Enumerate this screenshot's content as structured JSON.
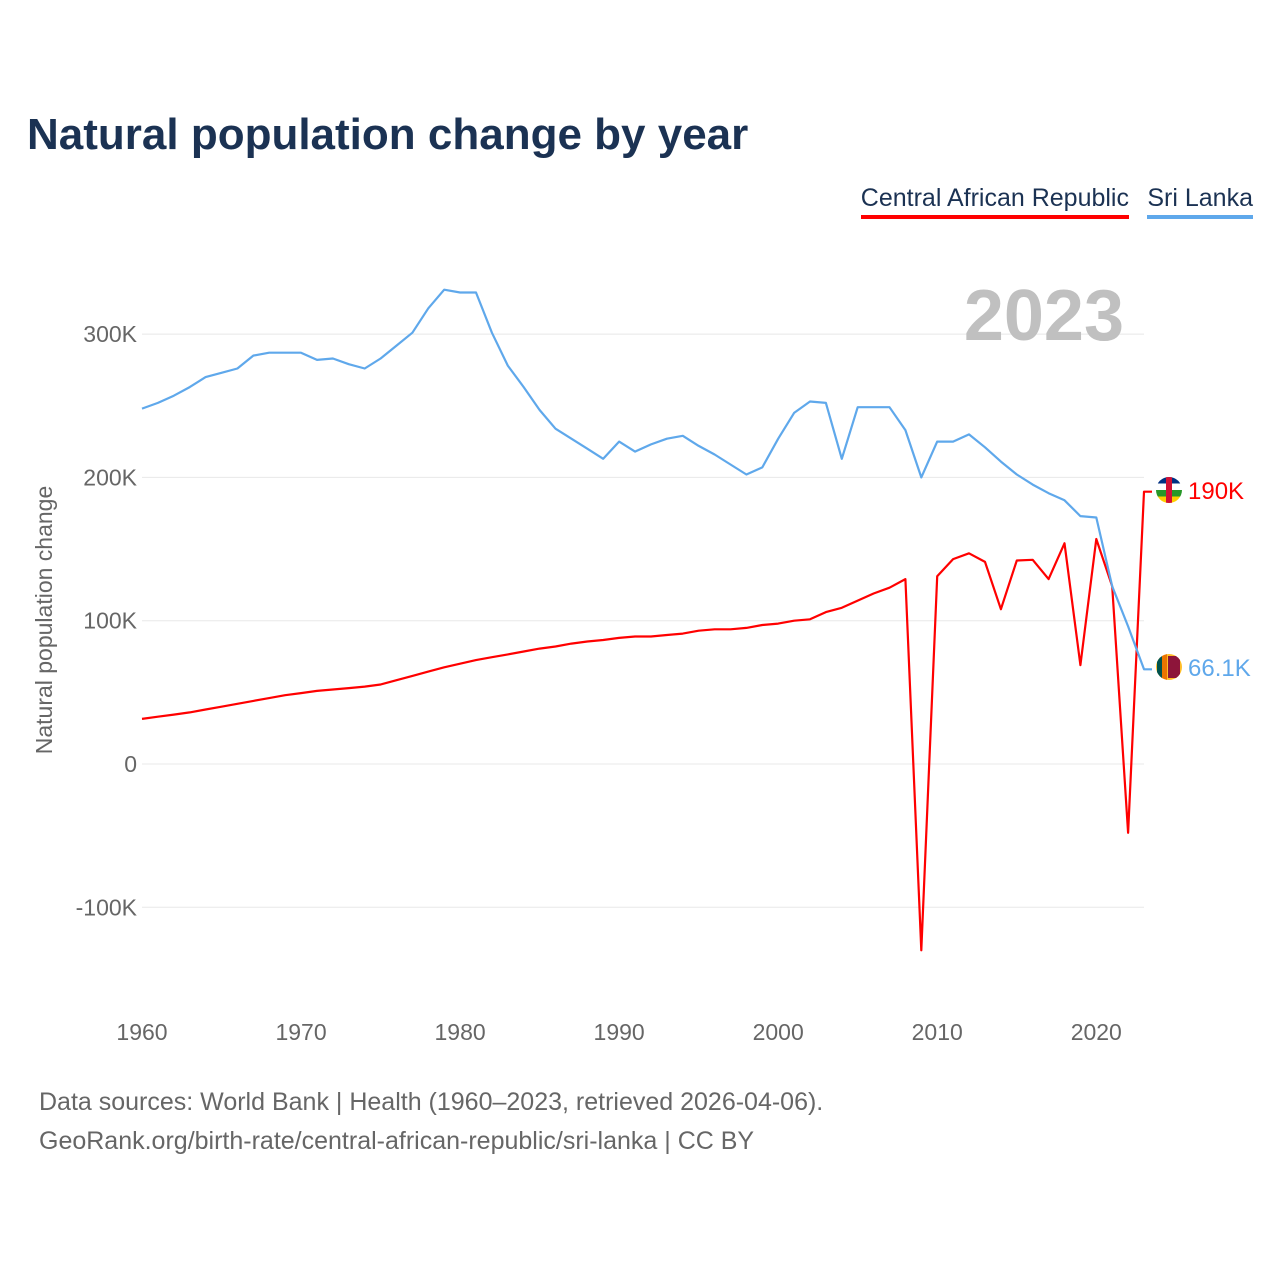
{
  "chart_data": {
    "type": "line",
    "title": "Natural population change by year",
    "ylabel": "Natural population change",
    "xlabel": "",
    "year_watermark": "2023",
    "xlim": [
      1960,
      2023
    ],
    "ylim": [
      -150000,
      350000
    ],
    "yticks": [
      -100000,
      0,
      100000,
      200000,
      300000
    ],
    "ytick_labels": [
      "-100K",
      "0",
      "100K",
      "200K",
      "300K"
    ],
    "xticks": [
      1960,
      1970,
      1980,
      1990,
      2000,
      2010,
      2020
    ],
    "xtick_labels": [
      "1960",
      "1970",
      "1980",
      "1990",
      "2000",
      "2010",
      "2020"
    ],
    "grid": true,
    "legend_position": "top-right",
    "x": [
      1960,
      1961,
      1962,
      1963,
      1964,
      1965,
      1966,
      1967,
      1968,
      1969,
      1970,
      1971,
      1972,
      1973,
      1974,
      1975,
      1976,
      1977,
      1978,
      1979,
      1980,
      1981,
      1982,
      1983,
      1984,
      1985,
      1986,
      1987,
      1988,
      1989,
      1990,
      1991,
      1992,
      1993,
      1994,
      1995,
      1996,
      1997,
      1998,
      1999,
      2000,
      2001,
      2002,
      2003,
      2004,
      2005,
      2006,
      2007,
      2008,
      2009,
      2010,
      2011,
      2012,
      2013,
      2014,
      2015,
      2016,
      2017,
      2018,
      2019,
      2020,
      2021,
      2022,
      2023
    ],
    "series": [
      {
        "name": "Central African Republic",
        "color": "#ff0000",
        "end_label": "190K",
        "flag": "central-african-republic-flag",
        "values": [
          31500,
          33000,
          34500,
          36000,
          38000,
          40000,
          42000,
          44000,
          46000,
          48000,
          49500,
          51000,
          52000,
          53000,
          54000,
          55500,
          58500,
          61500,
          64500,
          67500,
          70000,
          72500,
          74500,
          76500,
          78500,
          80500,
          82000,
          84000,
          85500,
          86500,
          88000,
          89000,
          89000,
          90000,
          91000,
          93000,
          94000,
          94000,
          95000,
          97000,
          98000,
          100000,
          101000,
          106000,
          109000,
          114000,
          119000,
          123000,
          129000,
          -130000,
          131000,
          143000,
          147000,
          141000,
          108000,
          142000,
          142500,
          129000,
          154000,
          69000,
          157000,
          124000,
          -48000,
          190000
        ]
      },
      {
        "name": "Sri Lanka",
        "color": "#5fa8eb",
        "end_label": "66.1K",
        "flag": "sri-lanka-flag",
        "values": [
          248000,
          252000,
          257000,
          263000,
          270000,
          273000,
          276000,
          285000,
          287000,
          287000,
          287000,
          282000,
          283000,
          279000,
          276000,
          283000,
          292000,
          301000,
          318000,
          331000,
          329000,
          329000,
          301000,
          278000,
          263000,
          247000,
          234000,
          227000,
          220000,
          213000,
          225000,
          218000,
          223000,
          227000,
          229000,
          222000,
          216000,
          209000,
          202000,
          207000,
          227000,
          245000,
          253000,
          252000,
          213000,
          249000,
          249000,
          249000,
          233000,
          200000,
          225000,
          225000,
          230000,
          221000,
          211000,
          202000,
          195000,
          189000,
          184000,
          173000,
          172000,
          124000,
          96000,
          66100
        ]
      }
    ]
  },
  "footer": {
    "line1": "Data sources: World Bank | Health (1960–2023, retrieved 2026-04-06).",
    "line2": "GeoRank.org/birth-rate/central-african-republic/sri-lanka | CC BY"
  }
}
